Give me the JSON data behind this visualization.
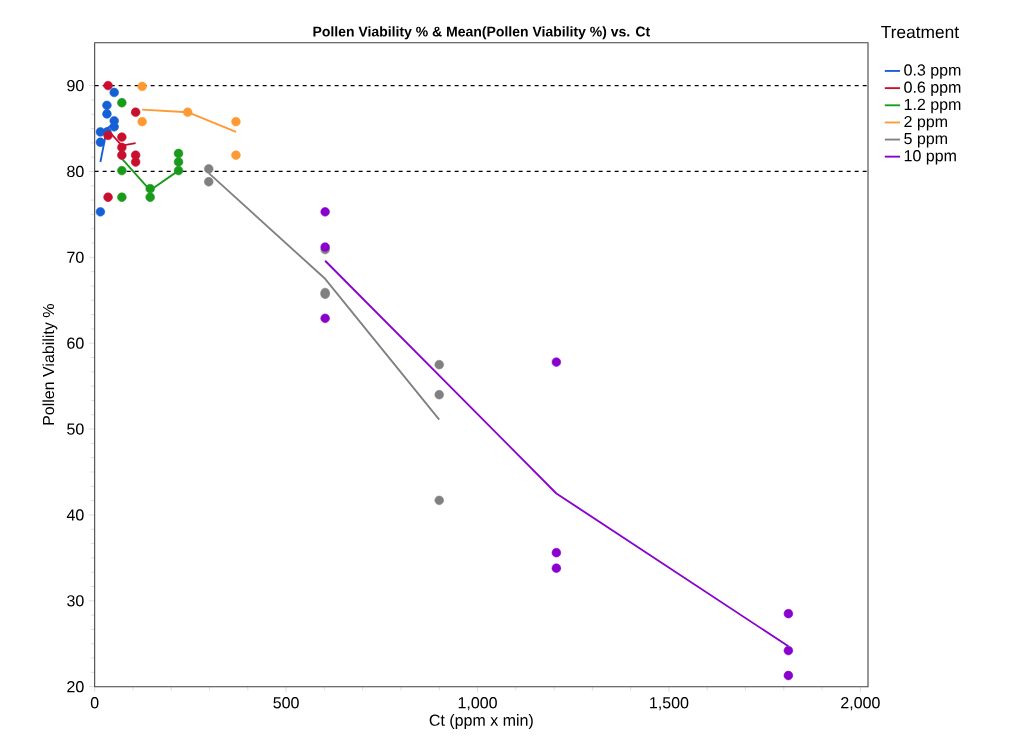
{
  "chart_data": {
    "type": "scatter",
    "title": "Pollen Viability % & Mean(Pollen Viability %) vs. Ct",
    "xlabel": "Ct (ppm x min)",
    "ylabel": "Pollen Viability %",
    "legend_title": "Treatment",
    "legend": "right",
    "grid": false,
    "xlim": [
      0,
      2020
    ],
    "ylim": [
      20,
      95
    ],
    "xticks": [
      {
        "value": 0,
        "label": "0"
      },
      {
        "value": 500,
        "label": "500"
      },
      {
        "value": 1000,
        "label": "1,000"
      },
      {
        "value": 1500,
        "label": "1,500"
      },
      {
        "value": 2000,
        "label": "2,000"
      }
    ],
    "yticks": [
      20,
      30,
      40,
      50,
      60,
      70,
      80,
      90
    ],
    "ref_lines": [
      {
        "axis": "y",
        "value": 90,
        "color": "#000000",
        "line_style": "dashed"
      },
      {
        "axis": "y",
        "value": 80,
        "color": "#000000",
        "line_style": "dashed"
      }
    ],
    "series": [
      {
        "marker": "circle",
        "color": "#1560d4",
        "x": [
          15,
          15,
          15,
          32,
          32,
          32,
          51,
          51,
          51
        ],
        "values": [
          75.3,
          84.6,
          83.4,
          87.7,
          86.7,
          84.6,
          89.2,
          85.9,
          85.2
        ]
      },
      {
        "marker": "circle",
        "color": "#c8102e",
        "x": [
          35,
          35,
          35,
          71,
          71,
          71,
          107,
          107,
          107
        ],
        "values": [
          90.0,
          84.2,
          77.0,
          84.0,
          82.8,
          81.9,
          86.9,
          81.9,
          81.1
        ]
      },
      {
        "marker": "circle",
        "color": "#1a9a1a",
        "x": [
          71,
          71,
          71,
          145,
          145,
          219,
          219,
          219
        ],
        "values": [
          88.0,
          80.1,
          77.0,
          78.0,
          77.0,
          82.1,
          81.1,
          80.1
        ]
      },
      {
        "marker": "circle",
        "color": "#ff9933",
        "x": [
          124,
          124,
          243,
          369,
          369
        ],
        "values": [
          89.9,
          85.8,
          86.9,
          85.8,
          81.9
        ]
      },
      {
        "marker": "circle",
        "color": "#808080",
        "x": [
          298,
          298,
          602,
          602,
          602,
          900,
          900,
          900
        ],
        "values": [
          80.3,
          78.8,
          70.9,
          65.9,
          65.7,
          57.5,
          54.0,
          41.7
        ]
      },
      {
        "marker": "circle",
        "color": "#8a00cc",
        "x": [
          602,
          602,
          602,
          1206,
          1206,
          1206,
          1812,
          1812,
          1812
        ],
        "values": [
          75.3,
          71.2,
          62.9,
          57.8,
          35.6,
          33.8,
          28.5,
          24.2,
          21.3
        ]
      },
      {
        "type": "line",
        "marker": "none",
        "name": "0.3 ppm",
        "color": "#1560d4",
        "x": [
          15,
          32,
          51
        ],
        "values": [
          81.1,
          85.0,
          85.6
        ]
      },
      {
        "type": "line",
        "marker": "none",
        "name": "0.6 ppm",
        "color": "#c8102e",
        "x": [
          35,
          71,
          107
        ],
        "values": [
          84.8,
          83.0,
          83.3
        ]
      },
      {
        "type": "line",
        "marker": "none",
        "name": "1.2 ppm",
        "color": "#1a9a1a",
        "x": [
          71,
          145,
          219
        ],
        "values": [
          81.5,
          77.8,
          80.1
        ]
      },
      {
        "type": "line",
        "marker": "none",
        "name": "2 ppm",
        "color": "#ff9933",
        "x": [
          124,
          243,
          369
        ],
        "values": [
          87.2,
          86.9,
          84.6
        ]
      },
      {
        "type": "line",
        "marker": "none",
        "name": "5 ppm",
        "color": "#808080",
        "x": [
          298,
          602,
          900
        ],
        "values": [
          79.8,
          67.5,
          51.1
        ]
      },
      {
        "type": "line",
        "marker": "none",
        "name": "10 ppm",
        "color": "#8a00cc",
        "x": [
          602,
          1206,
          1812
        ],
        "values": [
          69.6,
          42.5,
          24.7
        ]
      }
    ]
  }
}
